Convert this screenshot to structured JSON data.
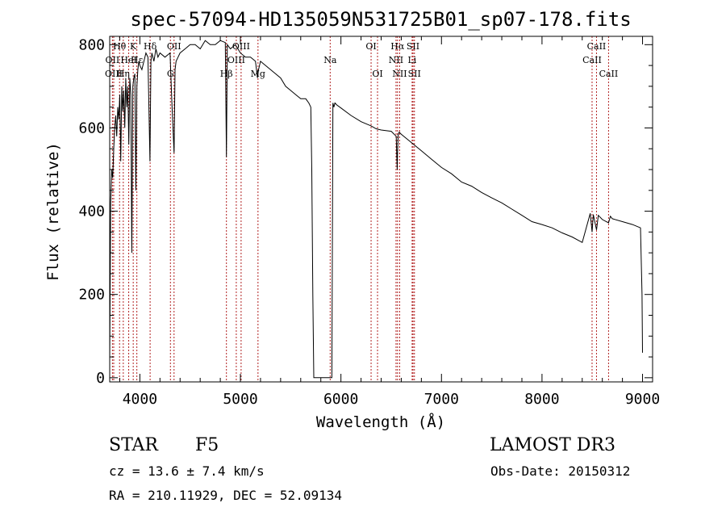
{
  "chart_data": {
    "type": "line",
    "title": "spec-57094-HD135059N531725B01_sp07-178.fits",
    "xlabel": "Wavelength (Å)",
    "ylabel": "Flux (relative)",
    "xlim": [
      3700,
      9100
    ],
    "ylim": [
      -10,
      820
    ],
    "xticks": [
      4000,
      5000,
      6000,
      7000,
      8000,
      9000
    ],
    "yticks": [
      0,
      200,
      400,
      600,
      800
    ],
    "series": [
      {
        "name": "spectrum",
        "x": [
          3700,
          3710,
          3720,
          3730,
          3740,
          3750,
          3760,
          3770,
          3780,
          3790,
          3800,
          3810,
          3820,
          3830,
          3840,
          3850,
          3860,
          3870,
          3880,
          3890,
          3900,
          3910,
          3920,
          3930,
          3940,
          3950,
          3960,
          3970,
          3980,
          3990,
          4000,
          4020,
          4040,
          4060,
          4080,
          4100,
          4110,
          4120,
          4140,
          4160,
          4180,
          4200,
          4250,
          4300,
          4320,
          4340,
          4350,
          4360,
          4380,
          4400,
          4450,
          4500,
          4550,
          4600,
          4650,
          4700,
          4750,
          4800,
          4850,
          4861,
          4870,
          4900,
          4950,
          5000,
          5050,
          5100,
          5150,
          5170,
          5180,
          5200,
          5250,
          5300,
          5350,
          5400,
          5450,
          5500,
          5550,
          5600,
          5650,
          5680,
          5700,
          5710,
          5720,
          5730,
          5740,
          5750,
          5760,
          5900,
          5910,
          5920,
          5930,
          5940,
          5960,
          6000,
          6100,
          6200,
          6300,
          6350,
          6400,
          6500,
          6550,
          6560,
          6563,
          6570,
          6580,
          6600,
          6700,
          6800,
          6900,
          7000,
          7100,
          7200,
          7300,
          7400,
          7500,
          7600,
          7700,
          7800,
          7900,
          8000,
          8100,
          8200,
          8300,
          8400,
          8480,
          8498,
          8510,
          8542,
          8560,
          8600,
          8662,
          8680,
          8700,
          8800,
          8900,
          8980,
          8995,
          9000
        ],
        "y": [
          40,
          420,
          500,
          480,
          550,
          600,
          630,
          580,
          650,
          620,
          680,
          520,
          700,
          640,
          690,
          600,
          720,
          650,
          700,
          560,
          720,
          680,
          300,
          700,
          720,
          730,
          450,
          700,
          740,
          760,
          750,
          740,
          760,
          780,
          770,
          520,
          760,
          780,
          760,
          790,
          770,
          780,
          770,
          780,
          650,
          540,
          740,
          760,
          770,
          780,
          790,
          800,
          800,
          790,
          810,
          800,
          800,
          810,
          805,
          530,
          800,
          790,
          800,
          780,
          770,
          770,
          760,
          720,
          740,
          760,
          750,
          740,
          730,
          720,
          700,
          690,
          680,
          670,
          670,
          660,
          650,
          500,
          200,
          0,
          0,
          0,
          0,
          0,
          0,
          660,
          650,
          660,
          655,
          648,
          630,
          615,
          605,
          598,
          595,
          592,
          580,
          500,
          540,
          585,
          590,
          585,
          565,
          545,
          525,
          505,
          490,
          470,
          460,
          445,
          432,
          420,
          405,
          390,
          375,
          368,
          360,
          348,
          338,
          325,
          395,
          350,
          392,
          355,
          390,
          380,
          372,
          388,
          382,
          375,
          368,
          360,
          200,
          60
        ]
      }
    ],
    "spectral_lines": [
      {
        "label": "Hθ",
        "x": 3798,
        "level": 1
      },
      {
        "label": "OII",
        "x": 3727,
        "level": 2
      },
      {
        "label": "OIII",
        "x": 3740,
        "level": 3
      },
      {
        "label": "Hη",
        "x": 3835,
        "level": 3
      },
      {
        "label": "K",
        "x": 3934,
        "level": 1
      },
      {
        "label": "HeI",
        "x": 3889,
        "level": 2
      },
      {
        "label": "Hε",
        "x": 3970,
        "level": 2
      },
      {
        "label": "Hδ",
        "x": 4102,
        "level": 1
      },
      {
        "label": "OII",
        "x": 4340,
        "level": 1
      },
      {
        "label": "G",
        "x": 4304,
        "level": 3
      },
      {
        "label": "Hβ",
        "x": 4861,
        "level": 3
      },
      {
        "label": "OIII",
        "x": 5007,
        "level": 1
      },
      {
        "label": "OIII",
        "x": 4959,
        "level": 2
      },
      {
        "label": "Mg",
        "x": 5175,
        "level": 3
      },
      {
        "label": "Na",
        "x": 5893,
        "level": 2
      },
      {
        "label": "OI",
        "x": 6300,
        "level": 1
      },
      {
        "label": "OI",
        "x": 6364,
        "level": 3
      },
      {
        "label": "Hα",
        "x": 6563,
        "level": 1
      },
      {
        "label": "SII",
        "x": 6717,
        "level": 1
      },
      {
        "label": "NII",
        "x": 6548,
        "level": 2
      },
      {
        "label": "Li",
        "x": 6708,
        "level": 2
      },
      {
        "label": "NII",
        "x": 6584,
        "level": 3
      },
      {
        "label": "SII",
        "x": 6731,
        "level": 3
      },
      {
        "label": "CaII",
        "x": 8542,
        "level": 1
      },
      {
        "label": "CaII",
        "x": 8498,
        "level": 2
      },
      {
        "label": "CaII",
        "x": 8662,
        "level": 3
      }
    ]
  },
  "info": {
    "object_class": "STAR",
    "subclass": "F5",
    "survey": "LAMOST DR3",
    "cz": "cz = 13.6 ± 7.4 km/s",
    "obs_date": "Obs-Date: 20150312",
    "coords": "RA = 210.11929, DEC =  52.09134"
  },
  "colors": {
    "line_marker": "#b22222",
    "spectrum": "#000000"
  }
}
